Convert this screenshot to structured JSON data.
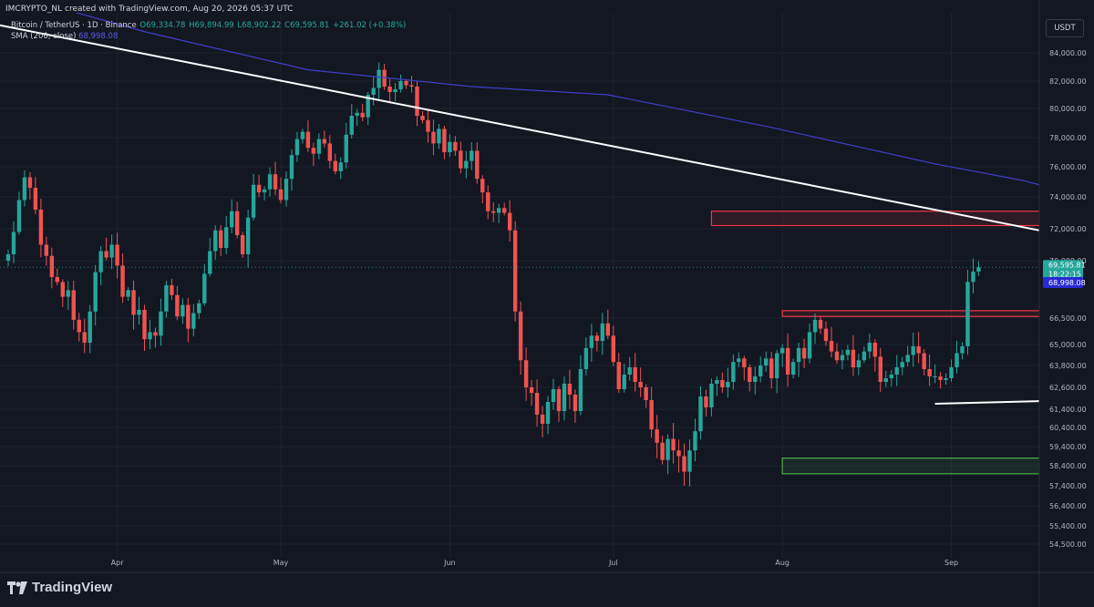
{
  "header": {
    "author_line": "IMCRYPTO_NL created with TradingView.com, Aug 20, 2026 05:37 UTC",
    "symbol_line": "Bitcoin / TetherUS · 1D · Binance",
    "open": "O69,334.78",
    "high": "H69,894.99",
    "low": "L68,902.22",
    "close": "C69,595.81",
    "change": "+261.02 (+0.38%)",
    "sma_label": "SMA (200, close)",
    "sma_value": "68,998.08",
    "currency": "USDT"
  },
  "brand": {
    "name": "TradingView"
  },
  "chart_data": {
    "type": "candlestick",
    "ylim": [
      53000,
      86000
    ],
    "yticks": [
      "84,000.00",
      "82,000.00",
      "80,000.00",
      "78,000.00",
      "76,000.00",
      "74,000.00",
      "72,000.00",
      "70,000.00",
      "66,500.00",
      "65,000.00",
      "63,800.00",
      "62,600.00",
      "61,400.00",
      "60,400.00",
      "59,400.00",
      "58,400.00",
      "57,400.00",
      "56,400.00",
      "55,400.00",
      "54,500.00"
    ],
    "xticks": [
      {
        "label": "Apr",
        "date": "2026-04-01"
      },
      {
        "label": "May",
        "date": "2026-05-01"
      },
      {
        "label": "Jun",
        "date": "2026-06-01"
      },
      {
        "label": "Jul",
        "date": "2026-07-01"
      },
      {
        "label": "Aug",
        "date": "2026-08-01"
      },
      {
        "label": "Sep",
        "date": "2026-09-01"
      }
    ],
    "start_date": "2026-03-12",
    "closes": [
      70400,
      71800,
      73800,
      75300,
      74600,
      73200,
      71000,
      70300,
      69000,
      68700,
      67800,
      68200,
      66400,
      65700,
      65100,
      66900,
      69300,
      70600,
      70200,
      71000,
      69700,
      67800,
      68200,
      66700,
      67000,
      65300,
      65700,
      65500,
      66900,
      68500,
      67900,
      66600,
      67300,
      65900,
      66800,
      67400,
      69200,
      70600,
      71900,
      70800,
      72100,
      73100,
      71600,
      70400,
      72700,
      74800,
      74300,
      74500,
      75500,
      74500,
      73800,
      75200,
      76800,
      77900,
      78400,
      77300,
      76900,
      77900,
      77600,
      76400,
      75700,
      76300,
      78200,
      79500,
      79700,
      79400,
      81000,
      81500,
      82800,
      81600,
      81200,
      81400,
      82000,
      81700,
      81600,
      79500,
      79200,
      78400,
      77600,
      78600,
      77000,
      77700,
      77100,
      75900,
      76400,
      77100,
      75200,
      74300,
      73100,
      73000,
      73300,
      73000,
      71900,
      66900,
      64100,
      62600,
      62300,
      61100,
      60600,
      61800,
      62500,
      61300,
      62800,
      62200,
      61300,
      63600,
      64800,
      65500,
      65200,
      66200,
      65500,
      64000,
      62500,
      63300,
      63700,
      62900,
      62600,
      61900,
      60300,
      59600,
      58700,
      59800,
      59200,
      58900,
      58100,
      59200,
      60200,
      62100,
      61500,
      62800,
      63000,
      62600,
      62900,
      64000,
      64200,
      63700,
      62900,
      63200,
      63800,
      64200,
      63100,
      64500,
      64800,
      63300,
      64000,
      64800,
      64200,
      65700,
      66400,
      65900,
      65200,
      64600,
      64100,
      64400,
      64700,
      63700,
      64100,
      64600,
      65100,
      64300,
      62900,
      63100,
      63300,
      63700,
      64000,
      64400,
      64900,
      64500,
      63600,
      63200,
      63200,
      63000,
      63100,
      63700,
      64500,
      64900,
      68700,
      69334,
      69595
    ],
    "sma": [
      [
        0,
        88200
      ],
      [
        25,
        85500
      ],
      [
        55,
        82800
      ],
      [
        85,
        81600
      ],
      [
        110,
        81000
      ],
      [
        140,
        78700
      ],
      [
        170,
        76200
      ],
      [
        186,
        75100
      ],
      [
        210,
        72900
      ],
      [
        240,
        71000
      ],
      [
        268,
        69500
      ],
      [
        283,
        69000
      ]
    ],
    "trendlines": [
      {
        "from": [
          -35,
          88500
        ],
        "to": [
          330,
          62900
        ]
      },
      {
        "from": [
          230,
          66800
        ],
        "to": [
          330,
          62900
        ]
      },
      {
        "from": [
          170,
          61700
        ],
        "to": [
          330,
          62900
        ]
      }
    ],
    "zones": [
      {
        "kind": "resistance",
        "x0": 129,
        "x1": 330,
        "y0": 72200,
        "y1": 73100
      },
      {
        "kind": "resistance",
        "x0": 142,
        "x1": 330,
        "y0": 66600,
        "y1": 66950
      },
      {
        "kind": "support",
        "x0": 142,
        "x1": 286,
        "y0": 58000,
        "y1": 58800
      }
    ],
    "last_price": {
      "value": 69595.81,
      "label": "69,595.81",
      "countdown": "18:22:15"
    },
    "sma_last": {
      "value": 68998.08,
      "label": "68,998.08"
    },
    "colors": {
      "up": "#26a69a",
      "down": "#ef5350",
      "sma": "#3f3fc8",
      "trendline": "#ffffff",
      "resistance": "#f23645",
      "support": "#4caf50",
      "sma_badge": "#2a2ad4"
    }
  }
}
